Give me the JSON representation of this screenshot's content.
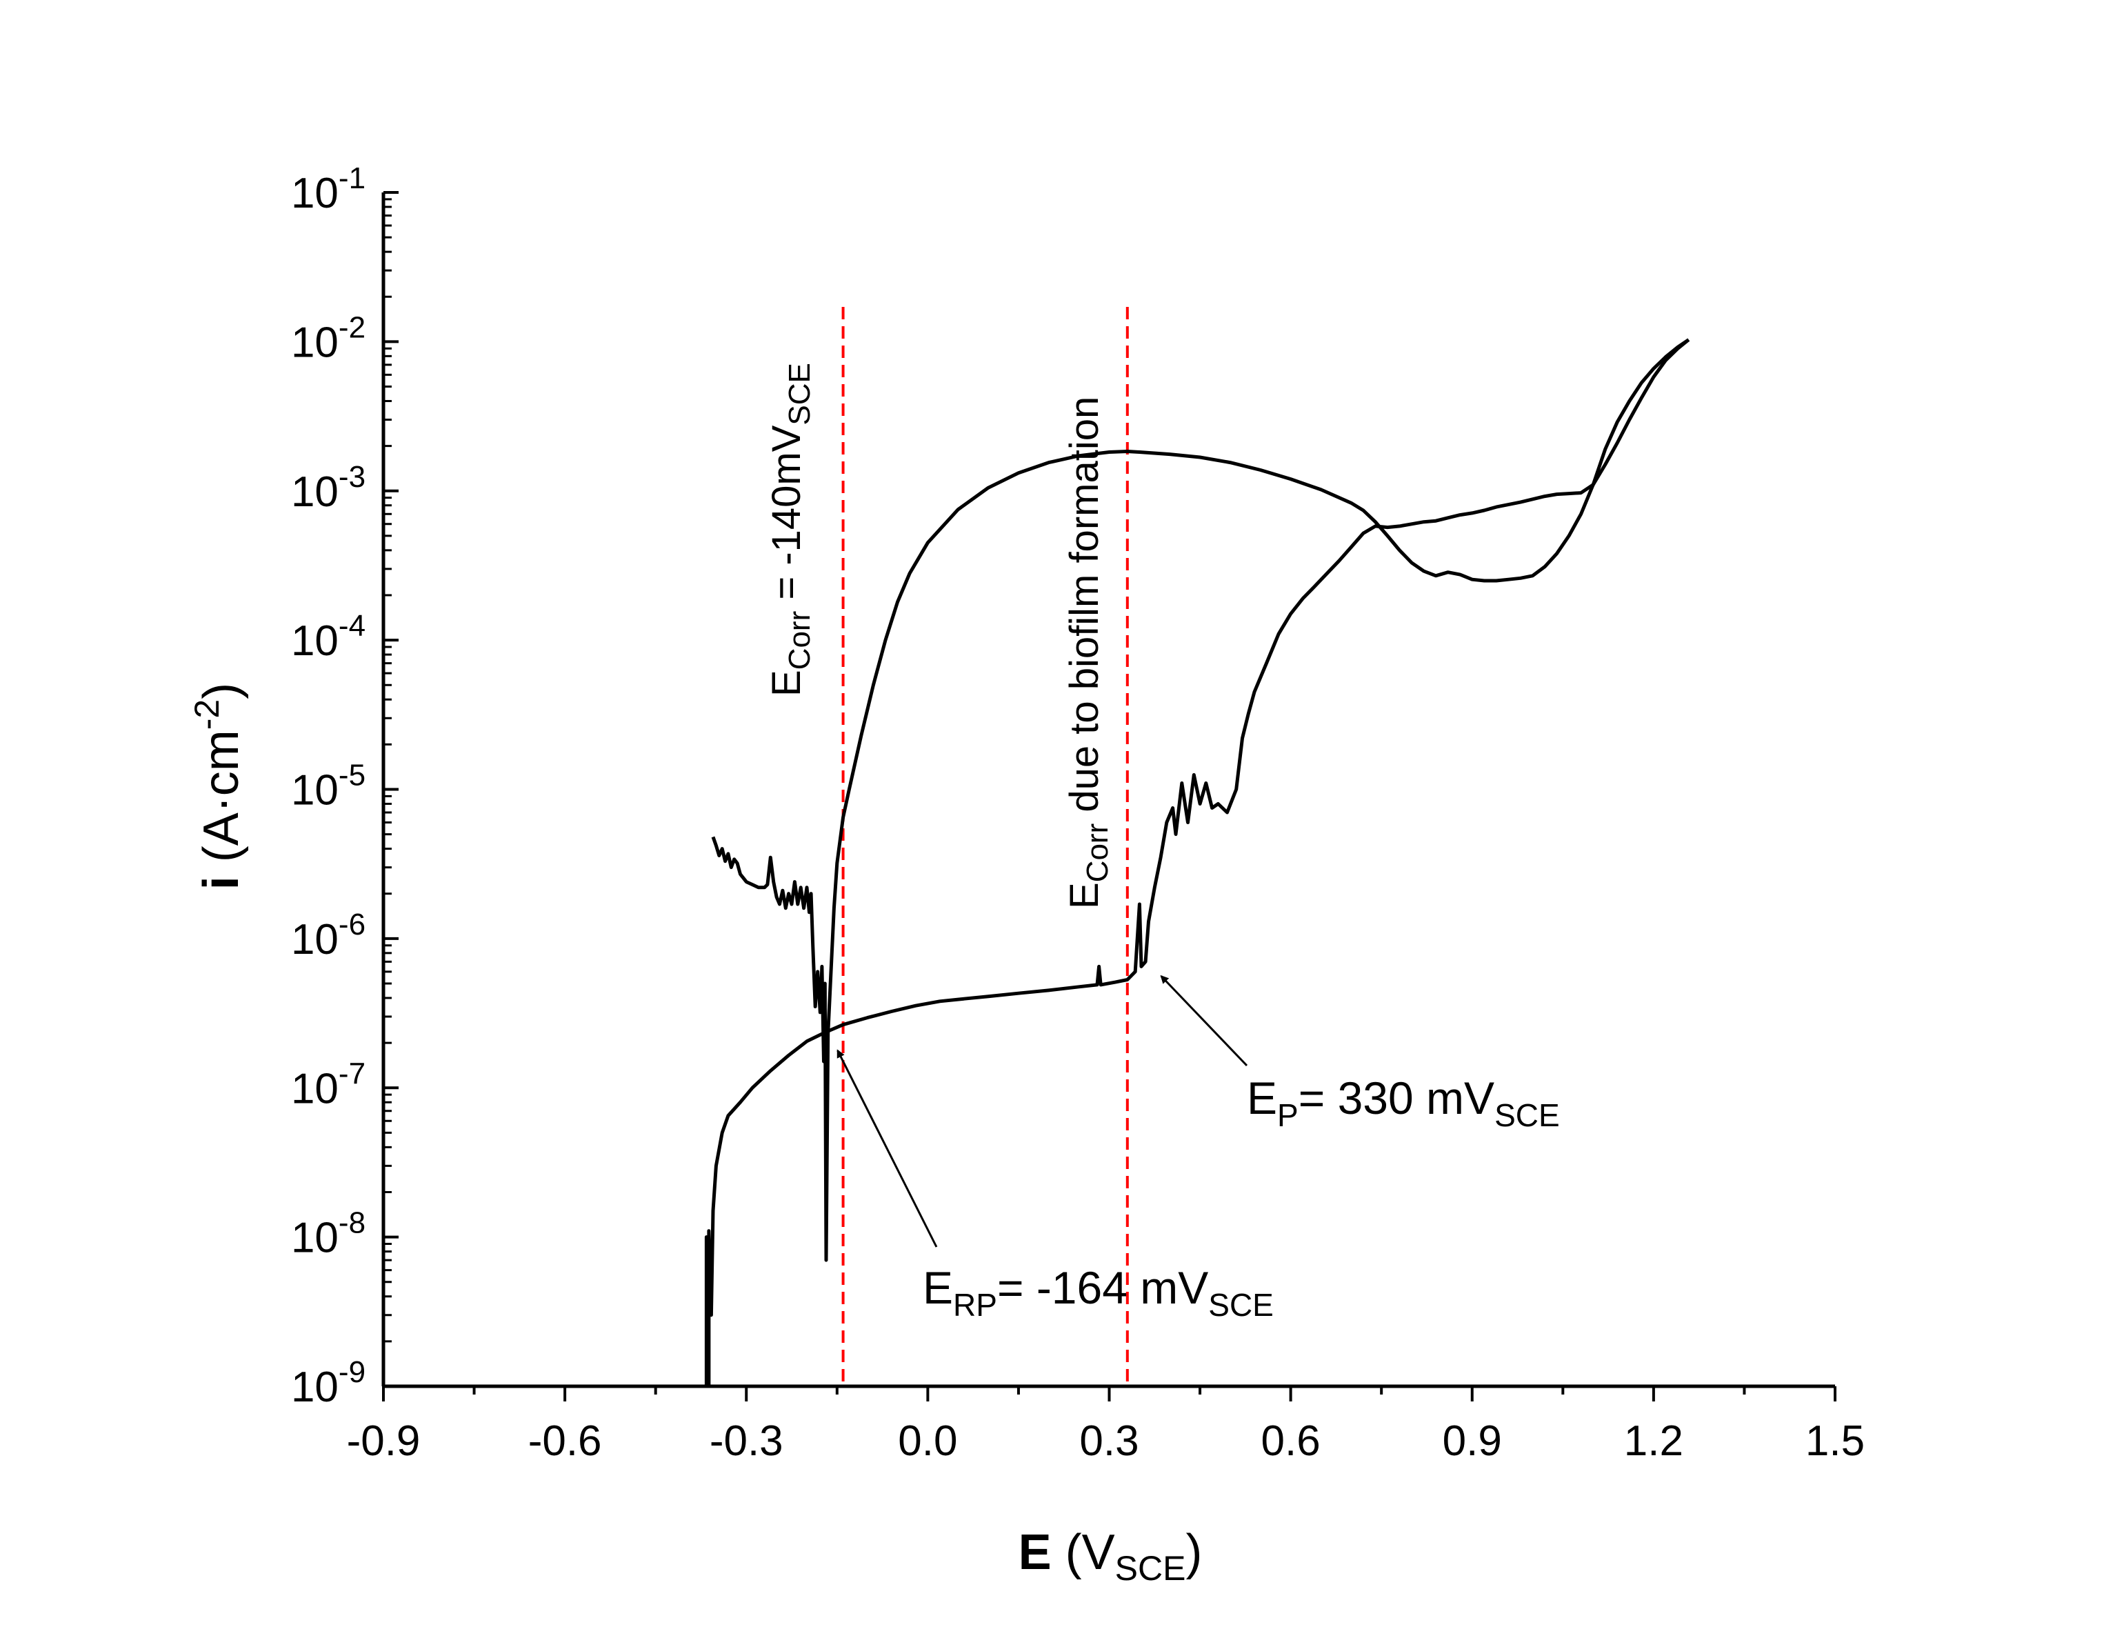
{
  "chart_data": {
    "type": "line",
    "xlabel": {
      "main": "E",
      "open": " (V",
      "sub": "SCE",
      "close": ")"
    },
    "ylabel": {
      "main": "i",
      "open": " (A·cm",
      "sup": "-2",
      "close": ")"
    },
    "xlim": [
      -0.9,
      1.5
    ],
    "ylim_log10": [
      -9,
      -1
    ],
    "x_ticks": [
      "-0.9",
      "-0.6",
      "-0.3",
      "0.0",
      "0.3",
      "0.6",
      "0.9",
      "1.2",
      "1.5"
    ],
    "y_ticks": [
      {
        "base": "10",
        "exp": "-1"
      },
      {
        "base": "10",
        "exp": "-2"
      },
      {
        "base": "10",
        "exp": "-3"
      },
      {
        "base": "10",
        "exp": "-4"
      },
      {
        "base": "10",
        "exp": "-5"
      },
      {
        "base": "10",
        "exp": "-6"
      },
      {
        "base": "10",
        "exp": "-7"
      },
      {
        "base": "10",
        "exp": "-8"
      },
      {
        "base": "10",
        "exp": "-9"
      }
    ],
    "series": [
      {
        "curve": "forward",
        "color": "#000000",
        "points": [
          [
            -0.366,
            1e-09
          ],
          [
            -0.366,
            1e-08
          ],
          [
            -0.362,
            1e-09
          ],
          [
            -0.362,
            1.1e-08
          ],
          [
            -0.358,
            3e-09
          ],
          [
            -0.355,
            1.5e-08
          ],
          [
            -0.35,
            3e-08
          ],
          [
            -0.34,
            5e-08
          ],
          [
            -0.33,
            6.5e-08
          ],
          [
            -0.31,
            8e-08
          ],
          [
            -0.29,
            1e-07
          ],
          [
            -0.26,
            1.3e-07
          ],
          [
            -0.23,
            1.65e-07
          ],
          [
            -0.2,
            2.05e-07
          ],
          [
            -0.17,
            2.35e-07
          ],
          [
            -0.14,
            2.65e-07
          ],
          [
            -0.1,
            2.95e-07
          ],
          [
            -0.06,
            3.25e-07
          ],
          [
            -0.02,
            3.55e-07
          ],
          [
            0.02,
            3.8e-07
          ],
          [
            0.06,
            3.95e-07
          ],
          [
            0.1,
            4.1e-07
          ],
          [
            0.15,
            4.3e-07
          ],
          [
            0.2,
            4.5e-07
          ],
          [
            0.25,
            4.75e-07
          ],
          [
            0.28,
            4.9e-07
          ],
          [
            0.283,
            6.5e-07
          ],
          [
            0.286,
            4.9e-07
          ],
          [
            0.31,
            5.1e-07
          ],
          [
            0.33,
            5.3e-07
          ],
          [
            0.343,
            6e-07
          ],
          [
            0.35,
            1.7e-06
          ],
          [
            0.353,
            6.5e-07
          ],
          [
            0.36,
            7e-07
          ],
          [
            0.365,
            1.3e-06
          ],
          [
            0.375,
            2.2e-06
          ],
          [
            0.385,
            3.5e-06
          ],
          [
            0.395,
            6e-06
          ],
          [
            0.405,
            7.5e-06
          ],
          [
            0.41,
            5e-06
          ],
          [
            0.42,
            1.1e-05
          ],
          [
            0.43,
            6e-06
          ],
          [
            0.44,
            1.25e-05
          ],
          [
            0.45,
            8e-06
          ],
          [
            0.46,
            1.1e-05
          ],
          [
            0.47,
            7.5e-06
          ],
          [
            0.48,
            8e-06
          ],
          [
            0.495,
            7e-06
          ],
          [
            0.51,
            1e-05
          ],
          [
            0.52,
            2.2e-05
          ],
          [
            0.53,
            3.2e-05
          ],
          [
            0.54,
            4.5e-05
          ],
          [
            0.56,
            7e-05
          ],
          [
            0.58,
            0.00011
          ],
          [
            0.6,
            0.00015
          ],
          [
            0.62,
            0.00019
          ],
          [
            0.64,
            0.00023
          ],
          [
            0.66,
            0.00028
          ],
          [
            0.68,
            0.00034
          ],
          [
            0.7,
            0.00042
          ],
          [
            0.72,
            0.00052
          ],
          [
            0.74,
            0.00058
          ],
          [
            0.76,
            0.00057
          ],
          [
            0.78,
            0.00058
          ],
          [
            0.8,
            0.0006
          ],
          [
            0.82,
            0.00062
          ],
          [
            0.84,
            0.00063
          ],
          [
            0.86,
            0.00066
          ],
          [
            0.88,
            0.00069
          ],
          [
            0.9,
            0.00071
          ],
          [
            0.92,
            0.00074
          ],
          [
            0.94,
            0.00078
          ],
          [
            0.96,
            0.00081
          ],
          [
            0.98,
            0.00084
          ],
          [
            1.0,
            0.00088
          ],
          [
            1.02,
            0.00092
          ],
          [
            1.04,
            0.00095
          ],
          [
            1.06,
            0.00096
          ],
          [
            1.08,
            0.00097
          ],
          [
            1.1,
            0.0011
          ],
          [
            1.12,
            0.0015
          ],
          [
            1.14,
            0.0021
          ],
          [
            1.16,
            0.003
          ],
          [
            1.18,
            0.0042
          ],
          [
            1.2,
            0.0058
          ],
          [
            1.22,
            0.0075
          ],
          [
            1.24,
            0.009
          ],
          [
            1.258,
            0.0103
          ]
        ]
      },
      {
        "curve": "reverse",
        "color": "#000000",
        "points": [
          [
            1.258,
            0.0103
          ],
          [
            1.24,
            0.0092
          ],
          [
            1.22,
            0.0079
          ],
          [
            1.2,
            0.0066
          ],
          [
            1.18,
            0.0053
          ],
          [
            1.16,
            0.004
          ],
          [
            1.14,
            0.0029
          ],
          [
            1.12,
            0.0019
          ],
          [
            1.1,
            0.0011
          ],
          [
            1.08,
            0.0007
          ],
          [
            1.06,
            0.0005
          ],
          [
            1.04,
            0.00038
          ],
          [
            1.02,
            0.00031
          ],
          [
            1.0,
            0.00027
          ],
          [
            0.98,
            0.00026
          ],
          [
            0.96,
            0.000255
          ],
          [
            0.94,
            0.00025
          ],
          [
            0.92,
            0.00025
          ],
          [
            0.9,
            0.000255
          ],
          [
            0.88,
            0.000275
          ],
          [
            0.86,
            0.000285
          ],
          [
            0.84,
            0.00027
          ],
          [
            0.82,
            0.00029
          ],
          [
            0.8,
            0.00033
          ],
          [
            0.78,
            0.0004
          ],
          [
            0.76,
            0.0005
          ],
          [
            0.74,
            0.00062
          ],
          [
            0.72,
            0.00074
          ],
          [
            0.7,
            0.00083
          ],
          [
            0.65,
            0.00102
          ],
          [
            0.6,
            0.0012
          ],
          [
            0.55,
            0.00138
          ],
          [
            0.5,
            0.00155
          ],
          [
            0.45,
            0.00168
          ],
          [
            0.4,
            0.00176
          ],
          [
            0.35,
            0.00182
          ],
          [
            0.33,
            0.00184
          ],
          [
            0.3,
            0.00182
          ],
          [
            0.25,
            0.00172
          ],
          [
            0.2,
            0.00155
          ],
          [
            0.15,
            0.00132
          ],
          [
            0.1,
            0.00105
          ],
          [
            0.05,
            0.00075
          ],
          [
            0.0,
            0.00045
          ],
          [
            -0.03,
            0.00028
          ],
          [
            -0.05,
            0.00018
          ],
          [
            -0.07,
            0.0001
          ],
          [
            -0.09,
            5e-05
          ],
          [
            -0.11,
            2.3e-05
          ],
          [
            -0.13,
            1e-05
          ],
          [
            -0.14,
            6.5e-06
          ],
          [
            -0.15,
            3.2e-06
          ],
          [
            -0.155,
            1.6e-06
          ],
          [
            -0.16,
            6e-07
          ],
          [
            -0.165,
            2.3e-07
          ],
          [
            -0.168,
            7e-09
          ],
          [
            -0.17,
            5e-07
          ],
          [
            -0.172,
            1.5e-07
          ],
          [
            -0.175,
            6.5e-07
          ],
          [
            -0.178,
            3.2e-07
          ],
          [
            -0.182,
            6e-07
          ],
          [
            -0.186,
            3.5e-07
          ],
          [
            -0.19,
            9e-07
          ],
          [
            -0.193,
            2e-06
          ],
          [
            -0.196,
            1.5e-06
          ],
          [
            -0.2,
            2.2e-06
          ],
          [
            -0.205,
            1.6e-06
          ],
          [
            -0.21,
            2.2e-06
          ],
          [
            -0.215,
            1.7e-06
          ],
          [
            -0.22,
            2.4e-06
          ],
          [
            -0.225,
            1.7e-06
          ],
          [
            -0.23,
            2e-06
          ],
          [
            -0.235,
            1.6e-06
          ],
          [
            -0.24,
            2.1e-06
          ],
          [
            -0.245,
            1.7e-06
          ],
          [
            -0.25,
            1.9e-06
          ],
          [
            -0.255,
            2.4e-06
          ],
          [
            -0.26,
            3.5e-06
          ],
          [
            -0.265,
            2.3e-06
          ],
          [
            -0.27,
            2.2e-06
          ],
          [
            -0.28,
            2.2e-06
          ],
          [
            -0.29,
            2.3e-06
          ],
          [
            -0.3,
            2.4e-06
          ],
          [
            -0.31,
            2.7e-06
          ],
          [
            -0.315,
            3.2e-06
          ],
          [
            -0.32,
            3.4e-06
          ],
          [
            -0.325,
            3e-06
          ],
          [
            -0.33,
            3.7e-06
          ],
          [
            -0.335,
            3.3e-06
          ],
          [
            -0.34,
            4e-06
          ],
          [
            -0.345,
            3.6e-06
          ],
          [
            -0.35,
            4.2e-06
          ],
          [
            -0.355,
            4.8e-06
          ]
        ]
      }
    ],
    "reference_lines": [
      {
        "x": -0.14,
        "color": "#ff0000",
        "style": "dashed"
      },
      {
        "x": 0.33,
        "color": "#ff0000",
        "style": "dashed"
      }
    ],
    "annotations": {
      "ecorr1": {
        "main": "E",
        "sub": "Corr",
        "rest": " = -140mV",
        "sub2": "SCE"
      },
      "ecorr2": {
        "main": "E",
        "sub": "Corr",
        "rest": " due to biofilm formation"
      },
      "erp": {
        "main": "E",
        "sub": "RP",
        "rest": "= -164 mV",
        "sub2": "SCE",
        "arrow_to": [
          -0.165,
          2.2e-07
        ]
      },
      "ep": {
        "main": "E",
        "sub": "P",
        "rest": "= 330 mV",
        "sub2": "SCE",
        "arrow_to": [
          0.37,
          6.5e-07
        ]
      }
    },
    "grid": false,
    "legend": "none"
  }
}
